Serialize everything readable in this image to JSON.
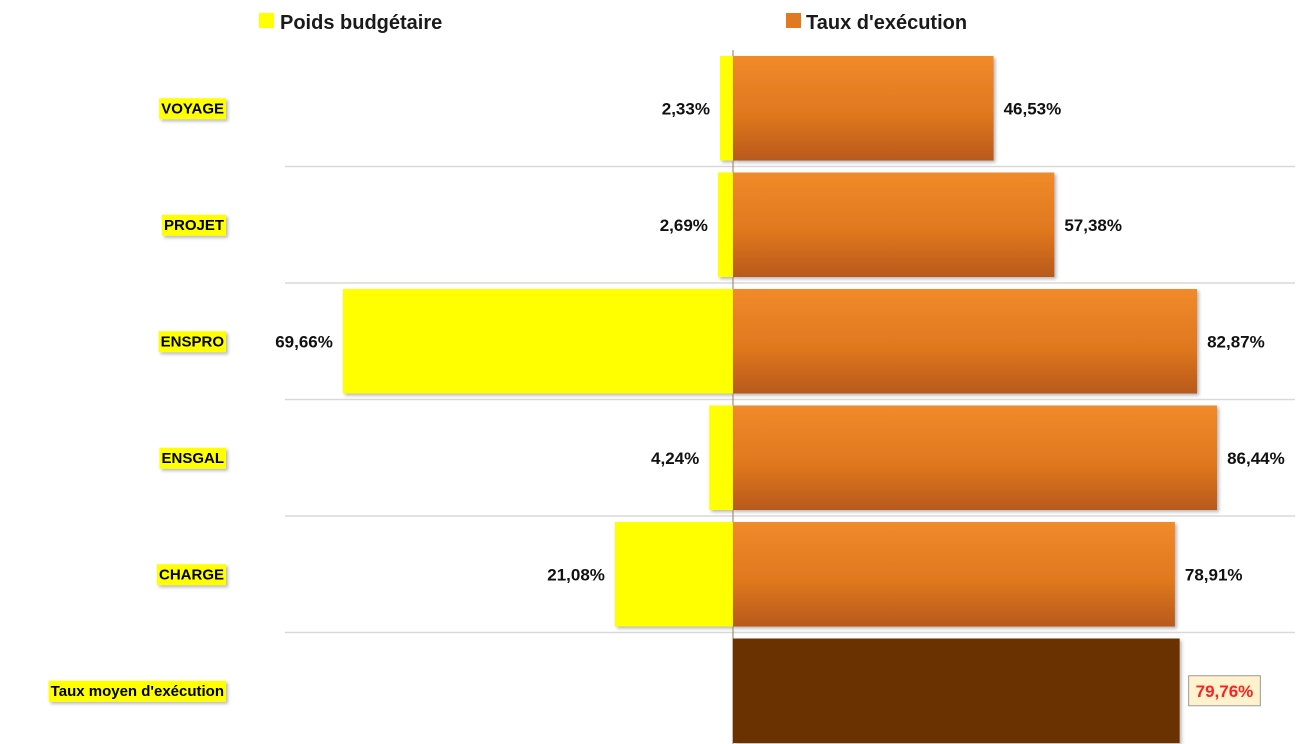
{
  "chart_data": {
    "type": "bar",
    "orientation": "horizontal-diverging",
    "legend": {
      "placement": "top",
      "items": [
        {
          "label": "Poids budgétaire",
          "color": "#ffff00"
        },
        {
          "label": "Taux d'exécution",
          "color": "#e07a22"
        }
      ]
    },
    "categories": [
      "VOYAGE",
      "PROJET",
      "ENSPRO",
      "ENSGAL",
      "CHARGE"
    ],
    "series": [
      {
        "name": "Poids budgétaire",
        "color": "#ffff00",
        "values": [
          2.33,
          2.69,
          69.66,
          4.24,
          21.08
        ],
        "labels": [
          "2,33%",
          "2,69%",
          "69,66%",
          "4,24%",
          "21,08%"
        ]
      },
      {
        "name": "Taux d'exécution",
        "color": "#e07a22",
        "values": [
          46.53,
          57.38,
          82.87,
          86.44,
          78.91
        ],
        "labels": [
          "46,53%",
          "57,38%",
          "82,87%",
          "86,44%",
          "78,91%"
        ]
      }
    ],
    "average": {
      "label": "Taux moyen d'exécution",
      "value": 79.76,
      "value_label": "79,76%",
      "color": "#6b3306",
      "value_color": "#ff2020"
    },
    "category_label_highlight": "#ffff00",
    "grid": true
  }
}
